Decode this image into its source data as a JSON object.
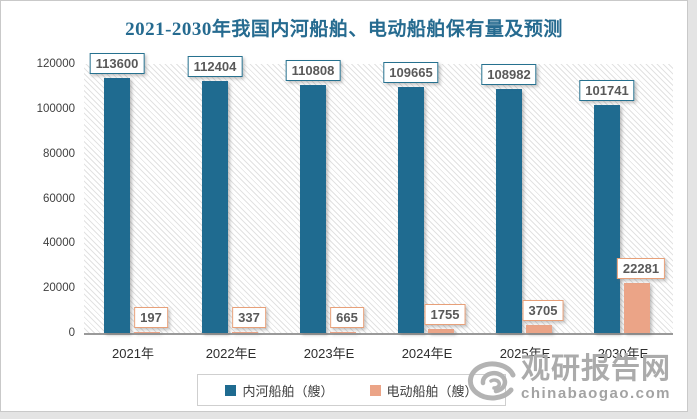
{
  "chart_data": {
    "type": "bar",
    "title": "2021-2030年我国内河船舶、电动船舶保有量及预测",
    "categories": [
      "2021年",
      "2022年E",
      "2023年E",
      "2024年E",
      "2025年E",
      "2030年E"
    ],
    "series": [
      {
        "name": "内河船舶（艘）",
        "color": "#1f6b90",
        "values": [
          113600,
          112404,
          110808,
          109665,
          108982,
          101741
        ]
      },
      {
        "name": "电动船舶（艘）",
        "color": "#eba487",
        "values": [
          197,
          337,
          665,
          1755,
          3705,
          22281
        ]
      }
    ],
    "ylim": [
      0,
      120000
    ],
    "yticks": [
      0,
      20000,
      40000,
      60000,
      80000,
      100000,
      120000
    ],
    "grid": false,
    "legend_position": "bottom",
    "plot_background": "diagonal-hatch",
    "bar_labels": true
  },
  "watermark": {
    "name": "观研报告网",
    "domain": "chinabaogao.com",
    "logo": "swirl-icon"
  }
}
